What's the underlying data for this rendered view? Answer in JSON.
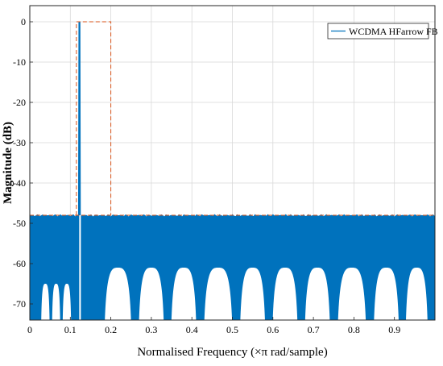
{
  "chart_data": {
    "type": "line",
    "xlabel": "Normalised Frequency (×π rad/sample)",
    "ylabel": "Magnitude (dB)",
    "xlim": [
      0,
      1
    ],
    "ylim": [
      -74,
      4
    ],
    "x_ticks": [
      0,
      0.1,
      0.2,
      0.3,
      0.4,
      0.5,
      0.6,
      0.7,
      0.8,
      0.9
    ],
    "x_tick_labels": [
      "0",
      "0.1",
      "0.2",
      "0.3",
      "0.4",
      "0.5",
      "0.6",
      "0.7",
      "0.8",
      "0.9"
    ],
    "y_ticks": [
      0,
      -10,
      -20,
      -30,
      -40,
      -50,
      -60,
      -70
    ],
    "y_tick_labels": [
      "0",
      "-10",
      "-20",
      "-30",
      "-40",
      "-50",
      "-60",
      "-70"
    ],
    "grid": true,
    "legend_position": "top-right",
    "series": [
      {
        "name": "WCDMA HFarrow FB",
        "color": "#0072BD",
        "passband_edges": [
          0.12,
          0.125
        ],
        "passband_level": 0,
        "stopband_ceiling": -48,
        "stopband_ripple_floor": -60,
        "lobe_nulls": [
          0.025,
          0.052,
          0.078,
          0.105,
          0.175,
          0.26,
          0.34,
          0.42,
          0.51,
          0.59,
          0.67,
          0.75,
          0.84,
          0.92,
          0.99
        ],
        "lobe_peak": -61
      }
    ],
    "mask": {
      "color": "#D95319",
      "style": "dashed",
      "x": [
        0.115,
        0.115,
        0.2,
        0.2
      ],
      "y": [
        -48,
        0,
        0,
        -48
      ],
      "stopband_level": -48
    }
  }
}
